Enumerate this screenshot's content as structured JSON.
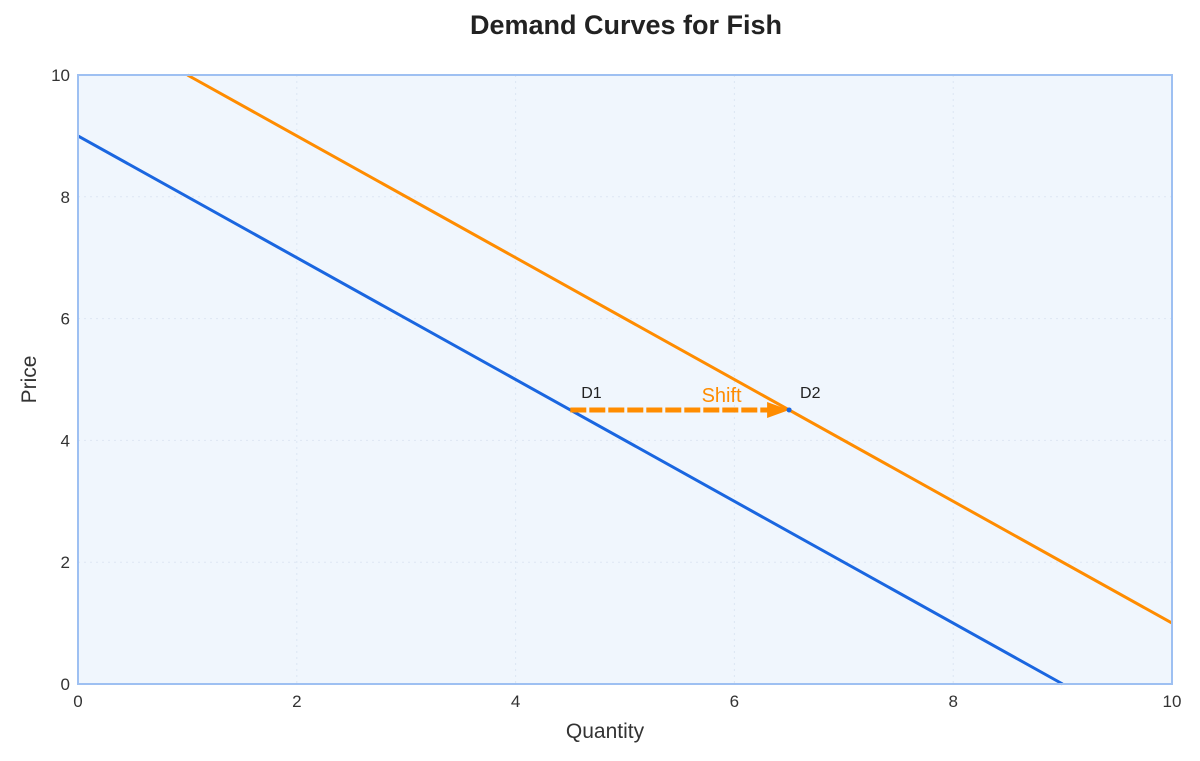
{
  "chart_data": {
    "type": "line",
    "title": "Demand Curves for Fish",
    "xlabel": "Quantity",
    "ylabel": "Price",
    "xlim": [
      0,
      10
    ],
    "ylim": [
      0,
      10
    ],
    "xticks": [
      0,
      2,
      4,
      6,
      8,
      10
    ],
    "yticks": [
      0,
      2,
      4,
      6,
      8,
      10
    ],
    "grid": true,
    "legend": null,
    "series": [
      {
        "name": "D1",
        "color": "#1a66e0",
        "x": [
          0,
          9
        ],
        "y": [
          9,
          0
        ],
        "equation": "P = 9 - Q"
      },
      {
        "name": "D2",
        "color": "#ff8c00",
        "x": [
          1,
          10
        ],
        "y": [
          10,
          1
        ],
        "equation": "P = 11 - Q"
      }
    ],
    "annotations": [
      {
        "text": "D1",
        "x": 4.6,
        "y": 4.7
      },
      {
        "text": "D2",
        "x": 6.6,
        "y": 4.7
      },
      {
        "text": "Shift",
        "x": 5.7,
        "y": 4.5,
        "color": "#ff8c00"
      },
      {
        "type": "arrow",
        "from": [
          4.5,
          4.5
        ],
        "to": [
          6.5,
          4.5
        ],
        "style": "dashed",
        "color": "#ff8c00"
      }
    ]
  },
  "colors": {
    "plot_bg": "#f0f6fd",
    "frame": "#9ec0f2",
    "grid": "#dde6f3",
    "d1": "#1a66e0",
    "d2": "#ff8c00"
  }
}
